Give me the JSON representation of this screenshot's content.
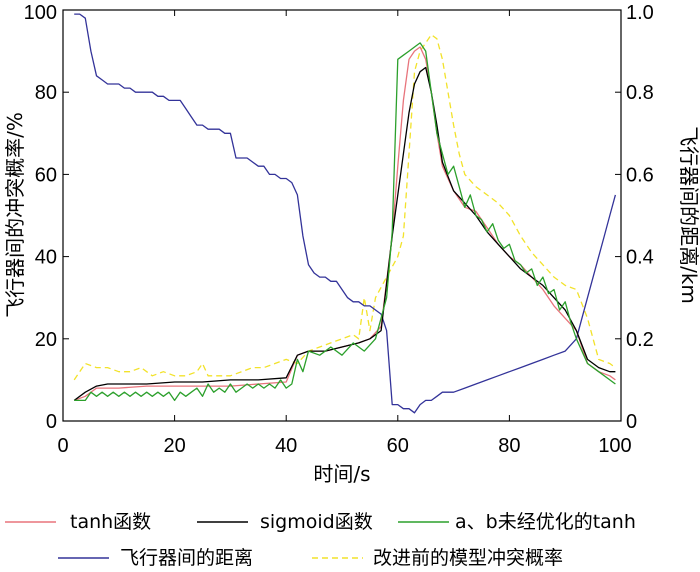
{
  "chart_data": {
    "type": "line",
    "title": "",
    "xlabel": "时间/s",
    "ylabel_left": "飞行器间的冲突概率/%",
    "ylabel_right": "飞行器间的距离/km",
    "xlim": [
      0,
      100
    ],
    "ylim_left": [
      0,
      100
    ],
    "ylim_right": [
      0,
      1.0
    ],
    "x_ticks": [
      "0",
      "20",
      "40",
      "60",
      "80",
      "100"
    ],
    "y_left_ticks": [
      "0",
      "20",
      "40",
      "60",
      "80",
      "100"
    ],
    "y_right_ticks": [
      "0",
      "0.2",
      "0.4",
      "0.6",
      "0.8",
      "1.0"
    ],
    "grid": false,
    "legend_position": "bottom",
    "series": [
      {
        "name": "tanh函数",
        "color": "#e8747c",
        "dash": "solid",
        "axis": "left",
        "x": [
          2,
          4,
          6,
          8,
          10,
          15,
          20,
          25,
          30,
          35,
          40,
          42,
          44,
          47,
          50,
          53,
          55,
          57,
          59,
          60,
          61,
          62,
          63,
          64,
          65,
          66,
          67,
          68,
          70,
          72,
          74,
          76,
          78,
          80,
          82,
          84,
          86,
          88,
          90,
          92,
          94,
          96,
          98,
          99
        ],
        "values": [
          5,
          6,
          8,
          8,
          8,
          8.5,
          8.5,
          8.5,
          8.5,
          9,
          9.5,
          16,
          17,
          17,
          18,
          19,
          20,
          23,
          45,
          62,
          78,
          88,
          90,
          91,
          88,
          80,
          70,
          62,
          56,
          52,
          51,
          47,
          43,
          40,
          38,
          35,
          32,
          28,
          25,
          22,
          14,
          12,
          11,
          10
        ]
      },
      {
        "name": "sigmoid函数",
        "color": "#000000",
        "dash": "solid",
        "axis": "left",
        "x": [
          2,
          4,
          6,
          8,
          10,
          15,
          20,
          25,
          30,
          35,
          40,
          42,
          44,
          47,
          50,
          53,
          55,
          57,
          59,
          60,
          61,
          62,
          63,
          64,
          65,
          66,
          67,
          68,
          70,
          72,
          74,
          76,
          78,
          80,
          82,
          84,
          86,
          88,
          90,
          92,
          94,
          96,
          98,
          99
        ],
        "values": [
          5,
          7,
          8.5,
          9,
          9,
          9,
          9.5,
          9.5,
          10,
          10,
          10.5,
          16,
          17,
          17,
          18,
          19,
          20,
          22,
          45,
          55,
          65,
          75,
          82,
          85,
          86,
          80,
          72,
          63,
          56,
          53,
          50,
          46,
          43,
          40,
          37,
          35,
          33,
          30,
          27,
          22,
          15,
          13,
          12,
          12
        ]
      },
      {
        "name": "a、b未经优化的tanh",
        "color": "#2ca02c",
        "dash": "solid",
        "axis": "left",
        "x": [
          2,
          4,
          5,
          6,
          7,
          8,
          9,
          10,
          11,
          12,
          13,
          14,
          15,
          16,
          17,
          18,
          19,
          20,
          21,
          22,
          23,
          24,
          25,
          26,
          27,
          28,
          29,
          30,
          31,
          32,
          33,
          34,
          35,
          36,
          37,
          38,
          39,
          40,
          41,
          42,
          43,
          44,
          46,
          48,
          50,
          52,
          54,
          56,
          58,
          59,
          60,
          61,
          62,
          63,
          64,
          65,
          66,
          67,
          68,
          69,
          70,
          71,
          72,
          73,
          74,
          75,
          76,
          77,
          78,
          79,
          80,
          81,
          82,
          83,
          84,
          85,
          86,
          87,
          88,
          89,
          90,
          91,
          92,
          94,
          96,
          98,
          99
        ],
        "values": [
          5,
          5,
          7,
          6,
          7,
          6,
          7,
          6,
          7,
          6,
          7,
          6,
          7,
          6,
          7,
          6,
          7,
          5,
          7,
          6,
          7,
          8,
          6,
          9,
          7,
          8,
          7,
          9,
          7,
          8,
          9,
          8,
          9,
          8,
          9,
          8,
          10,
          8,
          9,
          15,
          12,
          17,
          16,
          18,
          16,
          19,
          17,
          20,
          30,
          46,
          88,
          89,
          90,
          91,
          92,
          90,
          80,
          70,
          65,
          60,
          62,
          57,
          52,
          55,
          50,
          49,
          46,
          48,
          44,
          42,
          43,
          39,
          38,
          36,
          37,
          33,
          35,
          31,
          32,
          27,
          29,
          24,
          20,
          14,
          12,
          10,
          9
        ]
      },
      {
        "name": "飞行器间的距离",
        "color": "#333399",
        "dash": "solid",
        "axis": "right",
        "x": [
          2,
          3,
          4,
          5,
          6,
          7,
          8,
          9,
          10,
          11,
          12,
          13,
          14,
          15,
          16,
          17,
          18,
          19,
          20,
          21,
          22,
          23,
          24,
          25,
          26,
          27,
          28,
          29,
          30,
          31,
          32,
          33,
          34,
          35,
          36,
          37,
          38,
          39,
          40,
          41,
          42,
          43,
          44,
          45,
          46,
          47,
          48,
          49,
          50,
          51,
          52,
          53,
          54,
          55,
          56,
          57,
          58,
          59,
          60,
          61,
          62,
          63,
          64,
          65,
          66,
          67,
          68,
          70,
          72,
          74,
          76,
          78,
          80,
          82,
          84,
          86,
          88,
          90,
          92,
          93,
          94,
          95,
          96,
          97,
          98,
          99
        ],
        "values": [
          0.99,
          0.99,
          0.98,
          0.9,
          0.84,
          0.83,
          0.82,
          0.82,
          0.82,
          0.81,
          0.81,
          0.8,
          0.8,
          0.8,
          0.8,
          0.79,
          0.79,
          0.78,
          0.78,
          0.78,
          0.76,
          0.74,
          0.72,
          0.72,
          0.71,
          0.71,
          0.71,
          0.7,
          0.7,
          0.64,
          0.64,
          0.64,
          0.63,
          0.62,
          0.62,
          0.6,
          0.6,
          0.59,
          0.59,
          0.58,
          0.55,
          0.45,
          0.38,
          0.36,
          0.35,
          0.35,
          0.34,
          0.34,
          0.32,
          0.3,
          0.29,
          0.29,
          0.28,
          0.28,
          0.27,
          0.26,
          0.22,
          0.04,
          0.04,
          0.03,
          0.03,
          0.02,
          0.04,
          0.05,
          0.05,
          0.06,
          0.07,
          0.07,
          0.08,
          0.09,
          0.1,
          0.11,
          0.12,
          0.13,
          0.14,
          0.15,
          0.16,
          0.17,
          0.2,
          0.25,
          0.3,
          0.35,
          0.4,
          0.45,
          0.5,
          0.55
        ]
      },
      {
        "name": "改进前的模型冲突概率",
        "color": "#f2e22a",
        "dash": "dashed",
        "axis": "left",
        "x": [
          2,
          3,
          4,
          6,
          8,
          10,
          12,
          14,
          16,
          18,
          20,
          22,
          24,
          25,
          26,
          28,
          30,
          32,
          34,
          36,
          38,
          40,
          42,
          44,
          46,
          48,
          50,
          52,
          53,
          54,
          55,
          56,
          58,
          60,
          61,
          62,
          63,
          64,
          65,
          66,
          67,
          68,
          69,
          70,
          71,
          72,
          74,
          76,
          78,
          80,
          82,
          84,
          86,
          88,
          90,
          92,
          94,
          96,
          98,
          99
        ],
        "values": [
          10,
          12,
          14,
          13,
          13,
          12,
          12,
          13,
          11,
          12,
          11,
          11,
          12,
          14,
          11,
          11,
          11,
          12,
          13,
          13,
          14,
          15,
          14,
          17,
          18,
          19,
          20,
          21,
          20,
          30,
          22,
          30,
          35,
          40,
          45,
          65,
          85,
          90,
          92,
          94,
          93,
          88,
          80,
          72,
          65,
          60,
          57,
          55,
          53,
          50,
          45,
          41,
          38,
          35,
          33,
          32,
          25,
          15,
          14,
          13
        ]
      }
    ]
  }
}
